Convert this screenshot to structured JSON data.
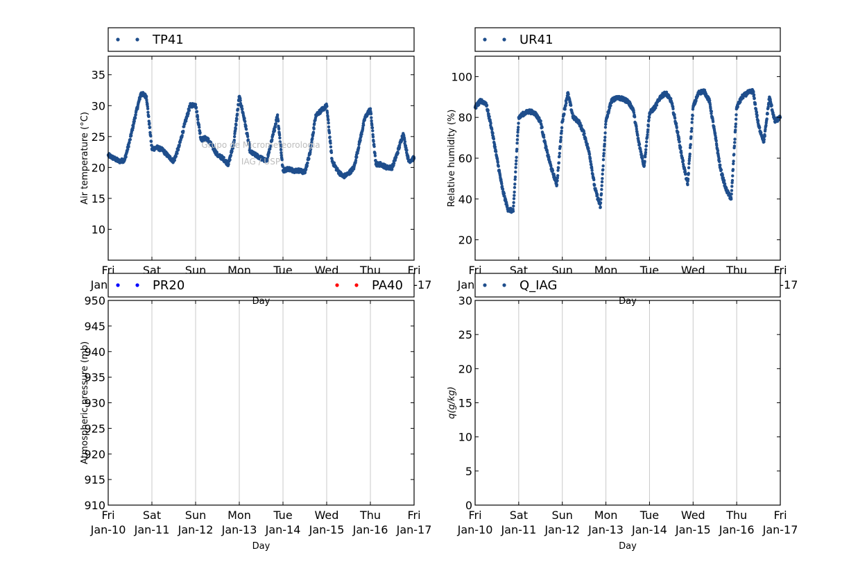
{
  "watermark": {
    "line1": "Grupo de Micrometeorologia",
    "line2": "IAG / USP"
  },
  "x_ticks": [
    {
      "day": "Fri",
      "date": "Jan-10"
    },
    {
      "day": "Sat",
      "date": "Jan-11"
    },
    {
      "day": "Sun",
      "date": "Jan-12"
    },
    {
      "day": "Mon",
      "date": "Jan-13"
    },
    {
      "day": "Tue",
      "date": "Jan-14"
    },
    {
      "day": "Wed",
      "date": "Jan-15"
    },
    {
      "day": "Thu",
      "date": "Jan-16"
    },
    {
      "day": "Fri",
      "date": "Jan-17"
    }
  ],
  "colors": {
    "series_blue": "#1f4e8c",
    "pr20": "#0000ff",
    "pa40": "#ff0000",
    "grid": "#c8c8c8"
  },
  "chart_data": [
    {
      "type": "scatter",
      "xlabel": "Day",
      "ylabel": "Air temperature (°C)",
      "ylim": [
        5,
        38
      ],
      "yticks": [
        10,
        15,
        20,
        25,
        30,
        35
      ],
      "xlim": [
        "2014-01-10",
        "2014-01-17"
      ],
      "legend": [
        "TP41"
      ],
      "series": [
        {
          "name": "TP41",
          "color": "#1f4e8c",
          "x": [
            "2014-01-10 00:00",
            "2014-01-10 03:00",
            "2014-01-10 06:00",
            "2014-01-10 09:00",
            "2014-01-10 12:00",
            "2014-01-10 15:00",
            "2014-01-10 18:00",
            "2014-01-10 21:00",
            "2014-01-11 00:00",
            "2014-01-11 03:00",
            "2014-01-11 06:00",
            "2014-01-11 09:00",
            "2014-01-11 12:00",
            "2014-01-11 15:00",
            "2014-01-11 18:00",
            "2014-01-11 21:00",
            "2014-01-12 00:00",
            "2014-01-12 03:00",
            "2014-01-12 06:00",
            "2014-01-12 09:00",
            "2014-01-12 12:00",
            "2014-01-12 15:00",
            "2014-01-12 18:00",
            "2014-01-12 21:00",
            "2014-01-13 00:00",
            "2014-01-13 03:00",
            "2014-01-13 06:00",
            "2014-01-13 09:00",
            "2014-01-13 12:00",
            "2014-01-13 15:00",
            "2014-01-13 18:00",
            "2014-01-13 21:00",
            "2014-01-14 00:00",
            "2014-01-14 03:00",
            "2014-01-14 06:00",
            "2014-01-14 09:00",
            "2014-01-14 12:00",
            "2014-01-14 15:00",
            "2014-01-14 18:00",
            "2014-01-14 21:00",
            "2014-01-15 00:00",
            "2014-01-15 03:00",
            "2014-01-15 06:00",
            "2014-01-15 09:00",
            "2014-01-15 12:00",
            "2014-01-15 15:00",
            "2014-01-15 18:00",
            "2014-01-15 21:00",
            "2014-01-16 00:00",
            "2014-01-16 03:00",
            "2014-01-16 06:00",
            "2014-01-16 09:00",
            "2014-01-16 12:00",
            "2014-01-16 15:00",
            "2014-01-16 18:00",
            "2014-01-16 21:00",
            "2014-01-17 00:00"
          ],
          "y": [
            22.0,
            21.5,
            21.0,
            21.2,
            24.5,
            28.5,
            32.0,
            31.5,
            23.0,
            23.2,
            22.8,
            21.8,
            21.0,
            23.5,
            27.0,
            30.0,
            30.2,
            24.5,
            24.8,
            23.5,
            22.0,
            21.5,
            20.5,
            24.0,
            31.5,
            27.5,
            22.5,
            22.0,
            21.5,
            21.0,
            24.5,
            28.5,
            19.5,
            19.8,
            19.5,
            19.5,
            19.2,
            22.5,
            28.5,
            29.2,
            30.0,
            21.0,
            19.5,
            18.5,
            19.0,
            20.0,
            24.0,
            28.0,
            29.5,
            20.5,
            20.5,
            20.0,
            20.0,
            22.5,
            25.5,
            21.0,
            21.5
          ]
        }
      ]
    },
    {
      "type": "scatter",
      "xlabel": "Day",
      "ylabel": "Relative humidity (%)",
      "ylim": [
        10,
        110
      ],
      "yticks": [
        20,
        40,
        60,
        80,
        100
      ],
      "xlim": [
        "2014-01-10",
        "2014-01-17"
      ],
      "legend": [
        "UR41"
      ],
      "series": [
        {
          "name": "UR41",
          "color": "#1f4e8c",
          "x": [
            "2014-01-10 00:00",
            "2014-01-10 03:00",
            "2014-01-10 06:00",
            "2014-01-10 09:00",
            "2014-01-10 12:00",
            "2014-01-10 15:00",
            "2014-01-10 18:00",
            "2014-01-10 21:00",
            "2014-01-11 00:00",
            "2014-01-11 03:00",
            "2014-01-11 06:00",
            "2014-01-11 09:00",
            "2014-01-11 12:00",
            "2014-01-11 15:00",
            "2014-01-11 18:00",
            "2014-01-11 21:00",
            "2014-01-12 00:00",
            "2014-01-12 03:00",
            "2014-01-12 06:00",
            "2014-01-12 09:00",
            "2014-01-12 12:00",
            "2014-01-12 15:00",
            "2014-01-12 18:00",
            "2014-01-12 21:00",
            "2014-01-13 00:00",
            "2014-01-13 03:00",
            "2014-01-13 06:00",
            "2014-01-13 09:00",
            "2014-01-13 12:00",
            "2014-01-13 15:00",
            "2014-01-13 18:00",
            "2014-01-13 21:00",
            "2014-01-14 00:00",
            "2014-01-14 03:00",
            "2014-01-14 06:00",
            "2014-01-14 09:00",
            "2014-01-14 12:00",
            "2014-01-14 15:00",
            "2014-01-14 18:00",
            "2014-01-14 21:00",
            "2014-01-15 00:00",
            "2014-01-15 03:00",
            "2014-01-15 06:00",
            "2014-01-15 09:00",
            "2014-01-15 12:00",
            "2014-01-15 15:00",
            "2014-01-15 18:00",
            "2014-01-15 21:00",
            "2014-01-16 00:00",
            "2014-01-16 03:00",
            "2014-01-16 06:00",
            "2014-01-16 09:00",
            "2014-01-16 12:00",
            "2014-01-16 15:00",
            "2014-01-16 18:00",
            "2014-01-16 21:00",
            "2014-01-17 00:00"
          ],
          "y": [
            85,
            88,
            87,
            75,
            60,
            45,
            35,
            34,
            80,
            82,
            83,
            82,
            78,
            65,
            55,
            47,
            78,
            92,
            80,
            78,
            72,
            62,
            45,
            36,
            78,
            88,
            90,
            89,
            88,
            84,
            68,
            56,
            82,
            85,
            90,
            92,
            88,
            75,
            60,
            47,
            85,
            92,
            93,
            88,
            72,
            55,
            45,
            40,
            85,
            90,
            92,
            93,
            76,
            68,
            90,
            78,
            80
          ]
        }
      ]
    },
    {
      "type": "scatter",
      "xlabel": "Day",
      "ylabel": "Atmospheric pressure (mb)",
      "ylim": [
        910,
        950
      ],
      "yticks": [
        910,
        915,
        920,
        925,
        930,
        935,
        940,
        945,
        950
      ],
      "xlim": [
        "2014-01-10",
        "2014-01-17"
      ],
      "legend": [
        "PR20",
        "PA40"
      ],
      "series": [
        {
          "name": "PR20",
          "color": "#0000ff",
          "x": [],
          "y": []
        },
        {
          "name": "PA40",
          "color": "#ff0000",
          "x": [],
          "y": []
        }
      ]
    },
    {
      "type": "scatter",
      "xlabel": "Day",
      "ylabel": "q(g/kg)",
      "ylim": [
        0,
        30
      ],
      "yticks": [
        0,
        5,
        10,
        15,
        20,
        25,
        30
      ],
      "xlim": [
        "2014-01-10",
        "2014-01-17"
      ],
      "legend": [
        "Q_IAG"
      ],
      "series": [
        {
          "name": "Q_IAG",
          "color": "#1f4e8c",
          "x": [],
          "y": []
        }
      ]
    }
  ]
}
